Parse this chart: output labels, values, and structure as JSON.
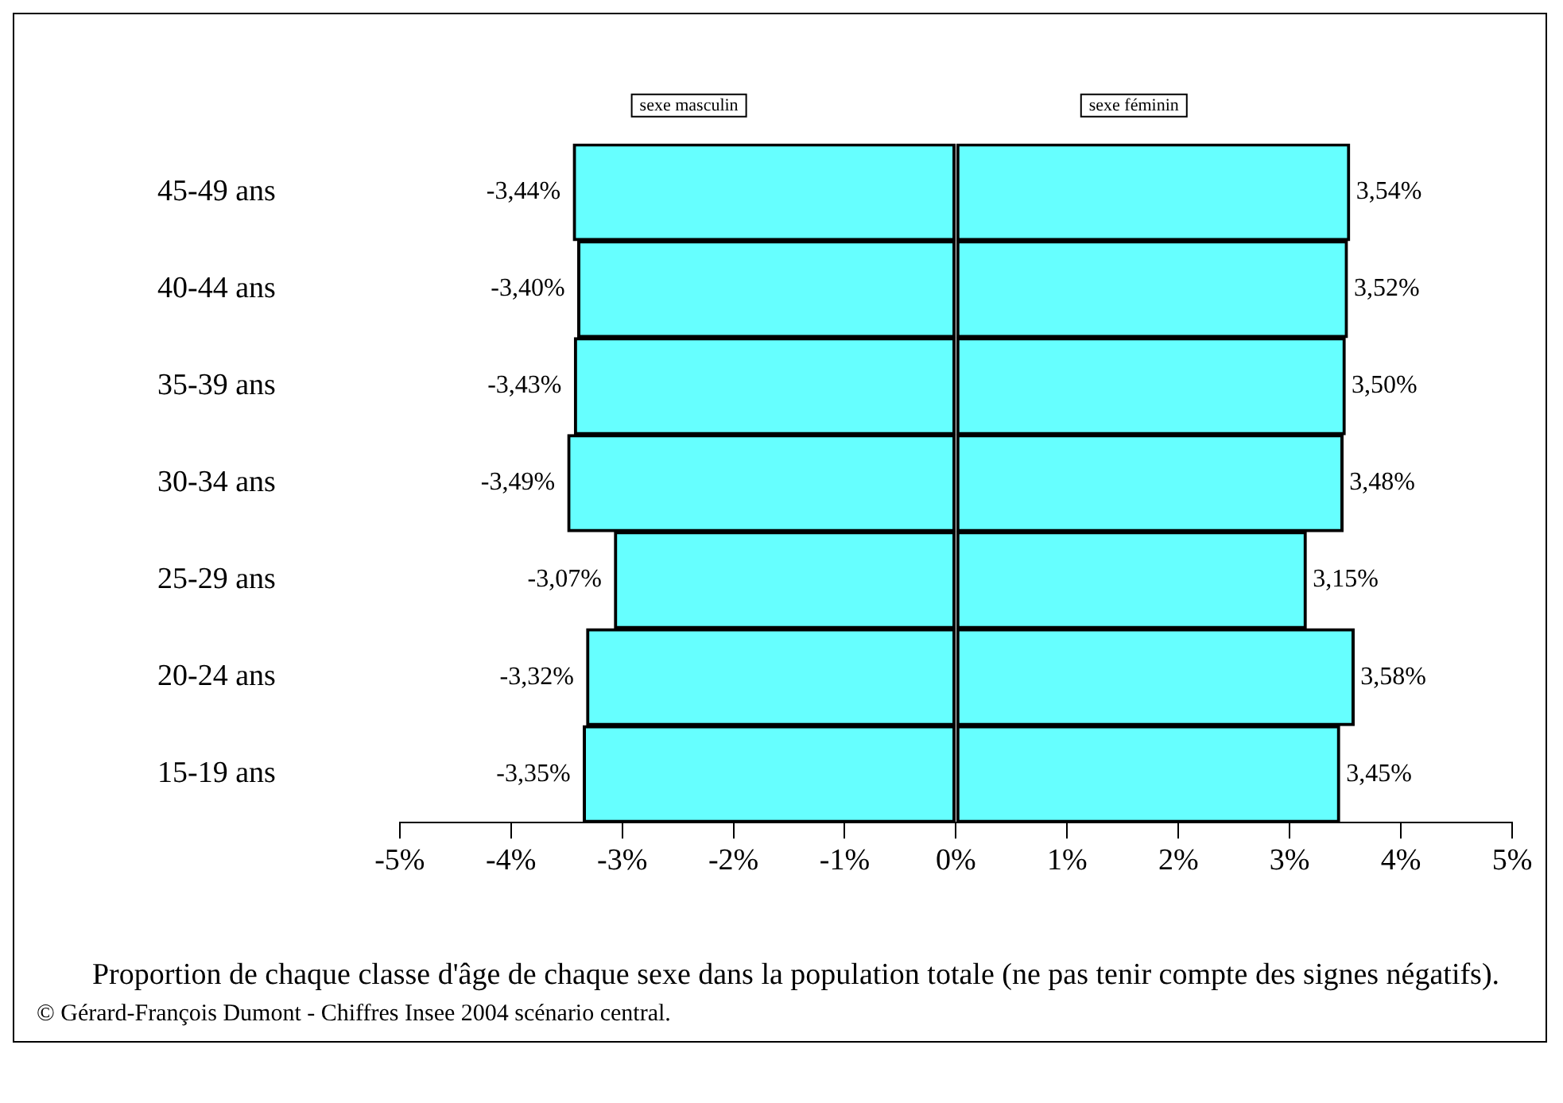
{
  "chart_data": {
    "type": "bar",
    "orientation": "horizontal",
    "stacked": true,
    "legend": false,
    "categories": [
      "45-49 ans",
      "40-44 ans",
      "35-39 ans",
      "30-34 ans",
      "25-29 ans",
      "20-24 ans",
      "15-19 ans"
    ],
    "series": [
      {
        "name": "sexe masculin",
        "color": "#66ffff",
        "values": [
          -3.44,
          -3.4,
          -3.43,
          -3.49,
          -3.07,
          -3.32,
          -3.35
        ],
        "value_labels": [
          "-3,44%",
          "-3,40%",
          "-3,43%",
          "-3,49%",
          "-3,07%",
          "-3,32%",
          "-3,35%"
        ]
      },
      {
        "name": "sexe féminin",
        "color": "#66ffff",
        "values": [
          3.54,
          3.52,
          3.5,
          3.48,
          3.15,
          3.58,
          3.45
        ],
        "value_labels": [
          "3,54%",
          "3,52%",
          "3,50%",
          "3,48%",
          "3,15%",
          "3,58%",
          "3,45%"
        ]
      }
    ],
    "xlim": [
      -5,
      5
    ],
    "xticks": [
      {
        "value": -5,
        "label": "-5%"
      },
      {
        "value": -4,
        "label": "-4%"
      },
      {
        "value": -3,
        "label": "-3%"
      },
      {
        "value": -2,
        "label": "-2%"
      },
      {
        "value": -1,
        "label": "-1%"
      },
      {
        "value": 0,
        "label": "0%"
      },
      {
        "value": 1,
        "label": "1%"
      },
      {
        "value": 2,
        "label": "2%"
      },
      {
        "value": 3,
        "label": "3%"
      },
      {
        "value": 4,
        "label": "4%"
      },
      {
        "value": 5,
        "label": "5%"
      }
    ],
    "grid": false,
    "xlabel": "Proportion de chaque classe d'âge de chaque sexe dans la population totale (ne pas tenir compte des signes négatifs).",
    "annotations": [
      "© Gérard-François Dumont - Chiffres Insee 2004 scénario central."
    ]
  }
}
